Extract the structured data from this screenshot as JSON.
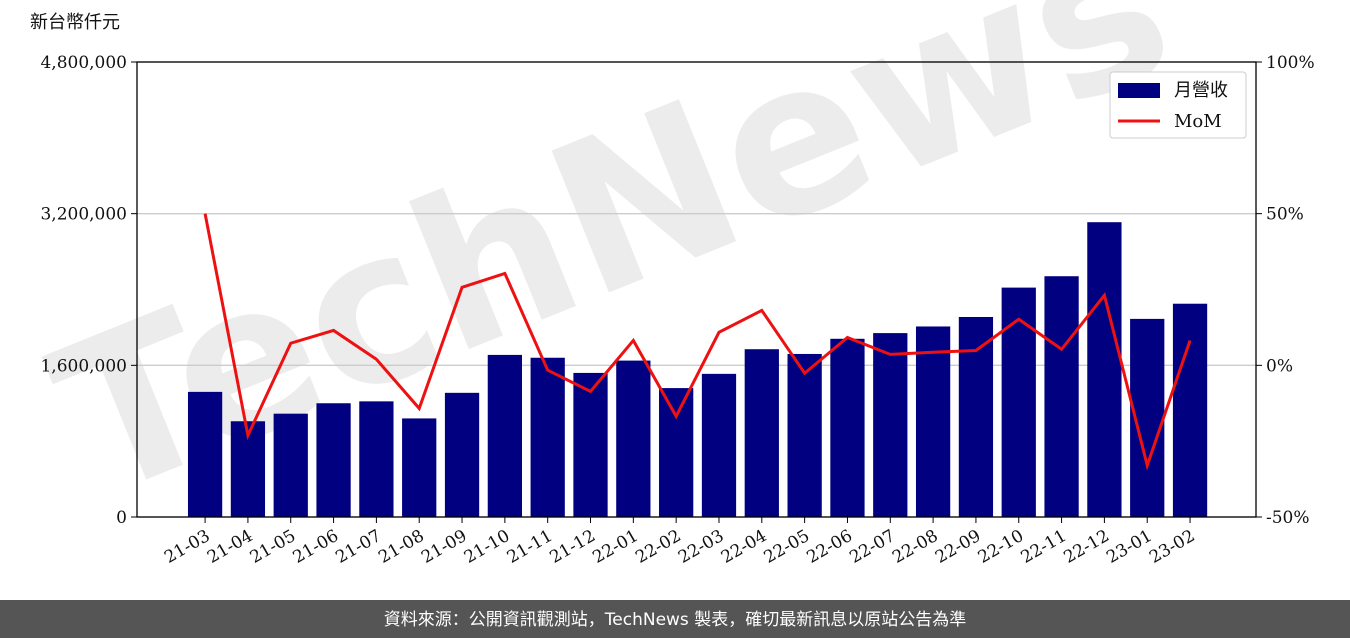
{
  "chart_data": {
    "type": "bar_line",
    "y_axis_label": "新台幣仟元",
    "watermark": "TechNews",
    "footer": "資料來源：公開資訊觀測站，TechNews 製表，確切最新訊息以原站公告為準",
    "categories": [
      "21-03",
      "21-04",
      "21-05",
      "21-06",
      "21-07",
      "21-08",
      "21-09",
      "21-10",
      "21-11",
      "21-12",
      "22-01",
      "22-02",
      "22-03",
      "22-04",
      "22-05",
      "22-06",
      "22-07",
      "22-08",
      "22-09",
      "22-10",
      "22-11",
      "22-12",
      "23-01",
      "23-02"
    ],
    "series": [
      {
        "name": "月營收",
        "type": "bar",
        "color": "#000080",
        "values": [
          1320000,
          1010000,
          1090000,
          1200000,
          1220000,
          1040000,
          1310000,
          1710000,
          1680000,
          1520000,
          1650000,
          1360000,
          1510000,
          1770000,
          1720000,
          1880000,
          1940000,
          2010000,
          2110000,
          2420000,
          2540000,
          3110000,
          2090000,
          2250000
        ]
      },
      {
        "name": "MoM",
        "type": "line",
        "axis": "y2",
        "color": "#ee1111",
        "values": [
          50,
          -23.1,
          7.3,
          11.5,
          2,
          -14.2,
          25.7,
          30.3,
          -1.6,
          -8.6,
          8.2,
          -16.8,
          10.9,
          18.1,
          -2.6,
          9.2,
          3.6,
          4.3,
          4.9,
          15.2,
          5.3,
          23.1,
          -33,
          8.2
        ]
      }
    ],
    "ylim": [
      0,
      4800000
    ],
    "yticks": [
      0,
      {
        "value": 1600000,
        "label": "1,600,000"
      },
      {
        "value": 3200000,
        "label": "3,200,000"
      },
      {
        "value": 4800000,
        "label": "4,800,000"
      }
    ],
    "y2lim": [
      -50,
      100
    ],
    "y2ticks": [
      {
        "value": -50,
        "label": "-50%"
      },
      {
        "value": 0,
        "label": "0%"
      },
      {
        "value": 50,
        "label": "50%"
      },
      {
        "value": 100,
        "label": "100%"
      }
    ],
    "grid": true,
    "legend": "upper right"
  }
}
